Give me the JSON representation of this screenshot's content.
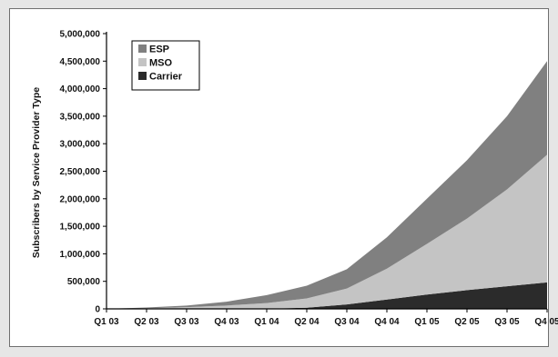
{
  "chart_data": {
    "type": "area",
    "stacked": true,
    "ylabel": "Subscribers by Service Provider Type",
    "xlabel": "",
    "title": "",
    "ylim": [
      0,
      5000000
    ],
    "y_ticks": [
      "0",
      "500,000",
      "1,000,000",
      "1,500,000",
      "2,000,000",
      "2,500,000",
      "3,000,000",
      "3,500,000",
      "4,000,000",
      "4,500,000",
      "5,000,000"
    ],
    "categories": [
      "Q1 03",
      "Q2 03",
      "Q3 03",
      "Q4 03",
      "Q1 04",
      "Q2 04",
      "Q3 04",
      "Q4 04",
      "Q1 05",
      "Q2 05",
      "Q3 05",
      "Q4 05"
    ],
    "legend_position": "top-left",
    "series": [
      {
        "name": "Carrier",
        "color": "#2b2b2b",
        "values": [
          0,
          0,
          0,
          0,
          5000,
          20000,
          80000,
          170000,
          260000,
          340000,
          410000,
          480000
        ]
      },
      {
        "name": "MSO",
        "color": "#c4c4c4",
        "values": [
          0,
          10000,
          30000,
          60000,
          100000,
          170000,
          290000,
          560000,
          920000,
          1300000,
          1760000,
          2320000
        ]
      },
      {
        "name": "ESP",
        "color": "#808080",
        "values": [
          0,
          15000,
          30000,
          70000,
          145000,
          230000,
          350000,
          570000,
          820000,
          1060000,
          1330000,
          1700000
        ]
      }
    ],
    "legend_order": [
      "ESP",
      "MSO",
      "Carrier"
    ]
  }
}
